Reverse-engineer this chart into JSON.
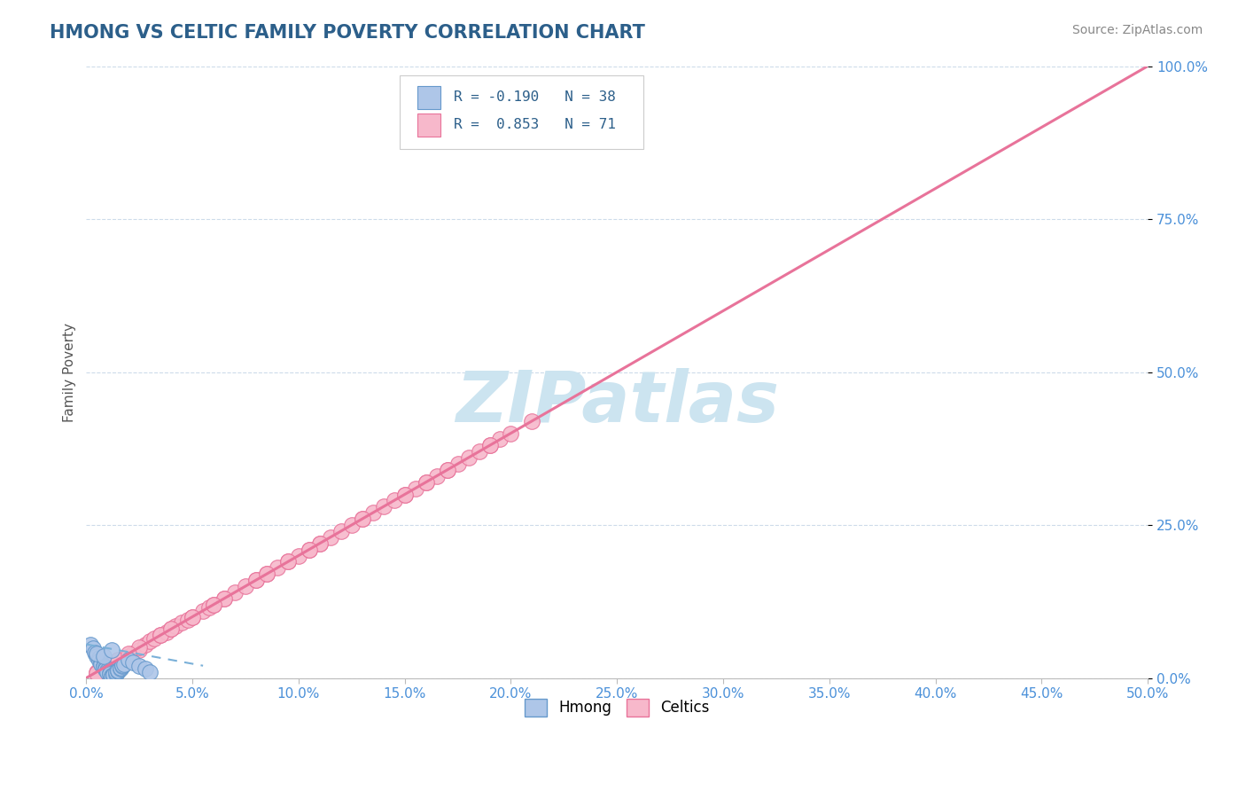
{
  "title": "HMONG VS CELTIC FAMILY POVERTY CORRELATION CHART",
  "source_text": "Source: ZipAtlas.com",
  "ylabel": "Family Poverty",
  "xlim": [
    0,
    0.5
  ],
  "ylim": [
    0,
    1.0
  ],
  "xtick_labels": [
    "0.0%",
    "5.0%",
    "10.0%",
    "15.0%",
    "20.0%",
    "25.0%",
    "30.0%",
    "35.0%",
    "40.0%",
    "45.0%",
    "50.0%"
  ],
  "ytick_labels": [
    "0.0%",
    "25.0%",
    "50.0%",
    "75.0%",
    "100.0%"
  ],
  "ytick_positions": [
    0,
    0.25,
    0.5,
    0.75,
    1.0
  ],
  "xtick_positions": [
    0,
    0.05,
    0.1,
    0.15,
    0.2,
    0.25,
    0.3,
    0.35,
    0.4,
    0.45,
    0.5
  ],
  "hmong_color": "#aec6e8",
  "celtics_color": "#f7b8cb",
  "hmong_edge_color": "#6699cc",
  "celtics_edge_color": "#e8739a",
  "trend_hmong_color": "#7ab0d8",
  "trend_celtics_color": "#e8739a",
  "r_hmong": -0.19,
  "n_hmong": 38,
  "r_celtics": 0.853,
  "n_celtics": 71,
  "watermark": "ZIPatlas",
  "watermark_color": "#cce4f0",
  "background_color": "#ffffff",
  "grid_color": "#c8d8e8",
  "title_color": "#2c5f8a",
  "axis_label_color": "#555555",
  "tick_label_color": "#4a90d9",
  "legend_text_color": "#2c5f8a",
  "celtics_trend_x0": 0.0,
  "celtics_trend_y0": 0.0,
  "celtics_trend_x1": 0.5,
  "celtics_trend_y1": 1.0,
  "hmong_trend_x0": 0.0,
  "hmong_trend_y0": 0.055,
  "hmong_trend_x1": 0.055,
  "hmong_trend_y1": 0.02,
  "celtics_x": [
    0.005,
    0.008,
    0.01,
    0.012,
    0.015,
    0.018,
    0.02,
    0.022,
    0.025,
    0.028,
    0.03,
    0.032,
    0.035,
    0.038,
    0.04,
    0.042,
    0.045,
    0.048,
    0.05,
    0.055,
    0.058,
    0.06,
    0.065,
    0.07,
    0.075,
    0.08,
    0.085,
    0.09,
    0.095,
    0.1,
    0.105,
    0.11,
    0.115,
    0.12,
    0.125,
    0.13,
    0.135,
    0.14,
    0.145,
    0.15,
    0.155,
    0.16,
    0.165,
    0.17,
    0.175,
    0.18,
    0.185,
    0.19,
    0.195,
    0.2,
    0.008,
    0.015,
    0.025,
    0.035,
    0.05,
    0.065,
    0.08,
    0.095,
    0.11,
    0.13,
    0.15,
    0.17,
    0.19,
    0.21,
    0.005,
    0.02,
    0.04,
    0.06,
    0.085,
    0.105,
    0.16
  ],
  "celtics_y": [
    0.01,
    0.015,
    0.018,
    0.022,
    0.025,
    0.03,
    0.035,
    0.04,
    0.045,
    0.055,
    0.06,
    0.065,
    0.07,
    0.075,
    0.08,
    0.085,
    0.09,
    0.095,
    0.1,
    0.11,
    0.115,
    0.12,
    0.13,
    0.14,
    0.15,
    0.16,
    0.17,
    0.18,
    0.19,
    0.2,
    0.21,
    0.22,
    0.23,
    0.24,
    0.25,
    0.26,
    0.27,
    0.28,
    0.29,
    0.3,
    0.31,
    0.32,
    0.33,
    0.34,
    0.35,
    0.36,
    0.37,
    0.38,
    0.39,
    0.4,
    0.02,
    0.03,
    0.05,
    0.07,
    0.1,
    0.13,
    0.16,
    0.19,
    0.22,
    0.26,
    0.3,
    0.34,
    0.38,
    0.42,
    0.008,
    0.04,
    0.08,
    0.12,
    0.17,
    0.21,
    0.32
  ],
  "hmong_x": [
    0.002,
    0.003,
    0.004,
    0.005,
    0.005,
    0.006,
    0.006,
    0.007,
    0.007,
    0.008,
    0.008,
    0.009,
    0.009,
    0.01,
    0.01,
    0.011,
    0.011,
    0.012,
    0.012,
    0.013,
    0.013,
    0.014,
    0.014,
    0.015,
    0.015,
    0.016,
    0.016,
    0.017,
    0.017,
    0.018,
    0.02,
    0.022,
    0.025,
    0.028,
    0.03,
    0.005,
    0.008,
    0.012
  ],
  "hmong_y": [
    0.055,
    0.048,
    0.042,
    0.038,
    0.035,
    0.032,
    0.028,
    0.025,
    0.022,
    0.02,
    0.018,
    0.016,
    0.014,
    0.012,
    0.01,
    0.008,
    0.006,
    0.004,
    0.002,
    0.003,
    0.005,
    0.007,
    0.009,
    0.011,
    0.013,
    0.015,
    0.017,
    0.019,
    0.021,
    0.023,
    0.03,
    0.025,
    0.02,
    0.015,
    0.01,
    0.04,
    0.035,
    0.045
  ]
}
